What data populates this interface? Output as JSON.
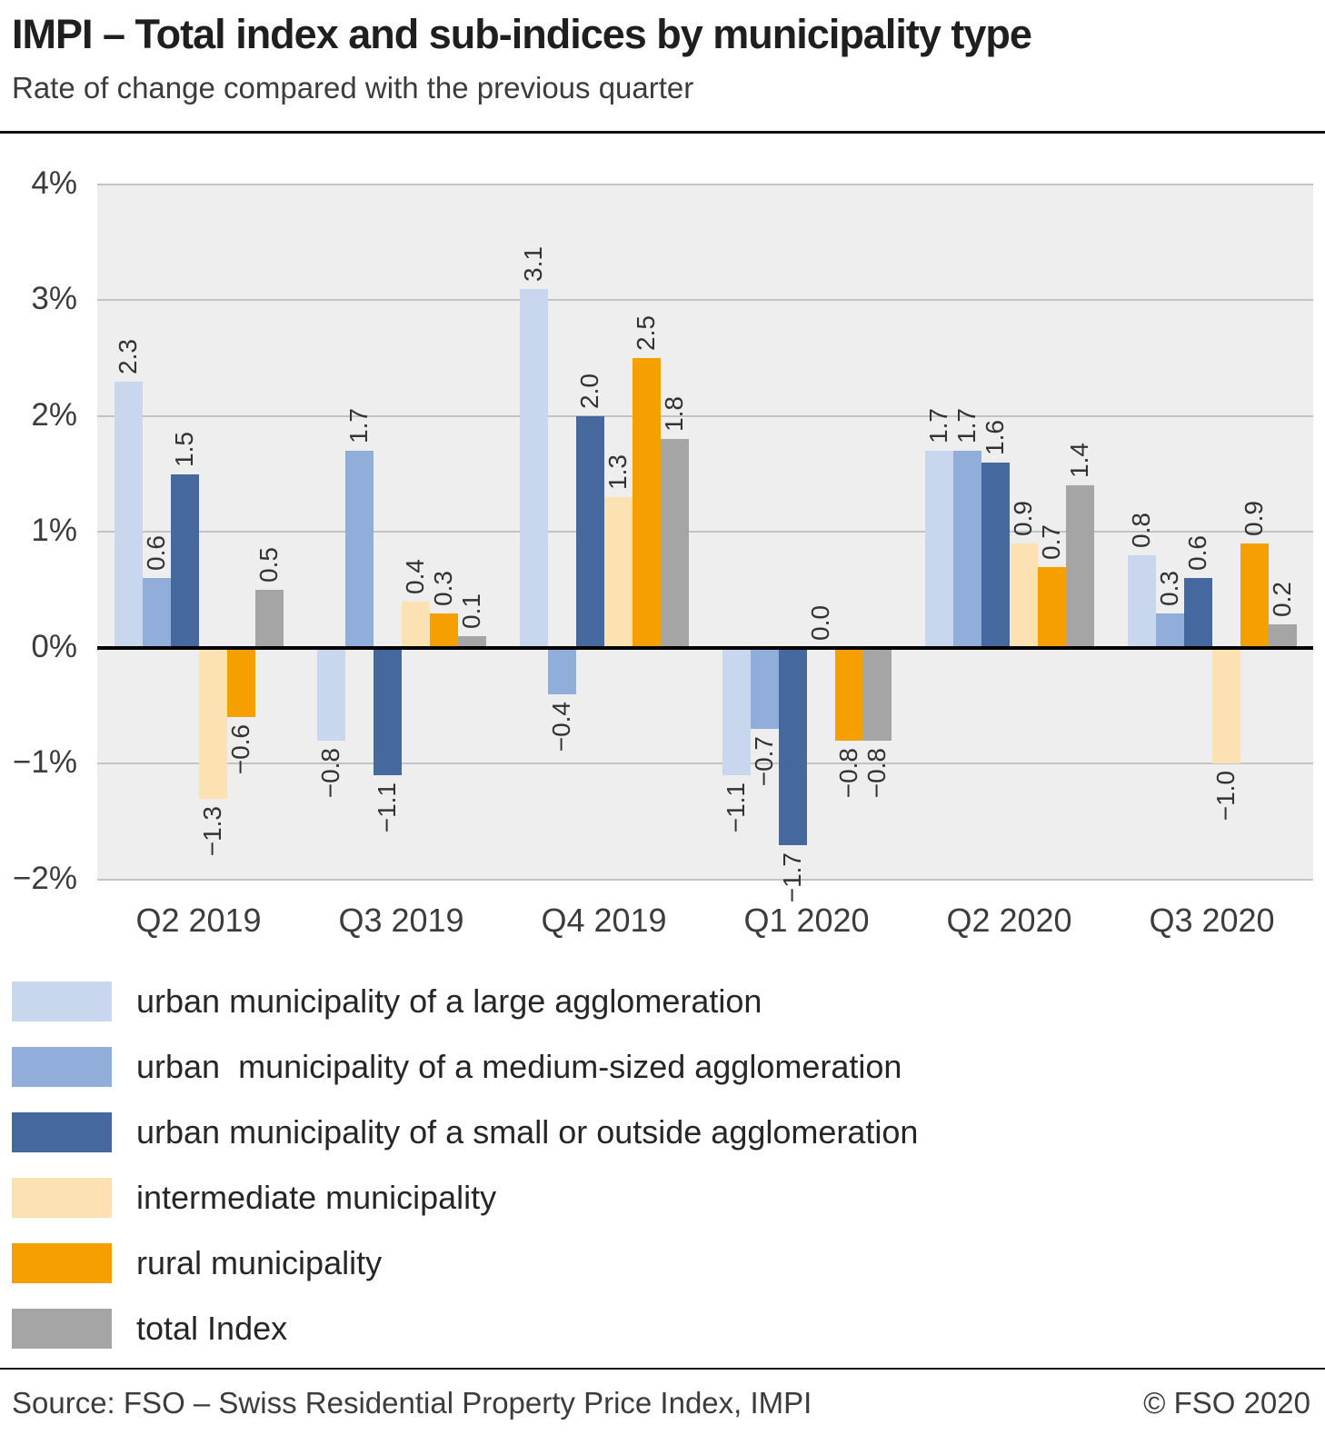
{
  "header": {
    "title": "IMPI – Total index and sub-indices by municipality type",
    "subtitle": "Rate of change compared with the previous quarter"
  },
  "footer": {
    "source": "Source: FSO – Swiss Residential Property Price Index, IMPI",
    "copyright": "© FSO 2020"
  },
  "chart_data": {
    "type": "bar",
    "title": "IMPI – Total index and sub-indices by municipality type",
    "subtitle": "Rate of change compared with the previous quarter",
    "unit": "%",
    "categories": [
      "Q2 2019",
      "Q3 2019",
      "Q4 2019",
      "Q1 2020",
      "Q2 2020",
      "Q3 2020"
    ],
    "series": [
      {
        "name": "urban municipality of a large agglomeration",
        "color": "#c8d6ee",
        "values": [
          2.3,
          -0.8,
          3.1,
          -1.1,
          1.7,
          0.8
        ]
      },
      {
        "name": "urban  municipality of a medium-sized agglomeration",
        "color": "#91aedb",
        "values": [
          0.6,
          1.7,
          -0.4,
          -0.7,
          1.7,
          0.3
        ]
      },
      {
        "name": "urban municipality of a small or outside agglomeration",
        "color": "#45699e",
        "values": [
          1.5,
          -1.1,
          2.0,
          -1.7,
          1.6,
          0.6
        ]
      },
      {
        "name": "intermediate municipality",
        "color": "#fce2b2",
        "values": [
          -1.3,
          0.4,
          1.3,
          0.0,
          0.9,
          -1.0
        ]
      },
      {
        "name": "rural municipality",
        "color": "#f5a000",
        "values": [
          -0.6,
          0.3,
          2.5,
          -0.8,
          0.7,
          0.9
        ]
      },
      {
        "name": "total Index",
        "color": "#a5a5a5",
        "values": [
          0.5,
          0.1,
          1.8,
          -0.8,
          1.4,
          0.2
        ]
      }
    ],
    "ylim": [
      -2,
      4
    ],
    "ytick_step": 1,
    "ytick_labels": [
      "4%",
      "3%",
      "2%",
      "1%",
      "0%",
      "−1%",
      "−2%"
    ],
    "grid": true,
    "plot_background": "#eeeeee",
    "gridline_color": "#c3c3c3",
    "zero_line_color": "#000000",
    "legend_position": "bottom",
    "value_label_decimals": 1
  }
}
